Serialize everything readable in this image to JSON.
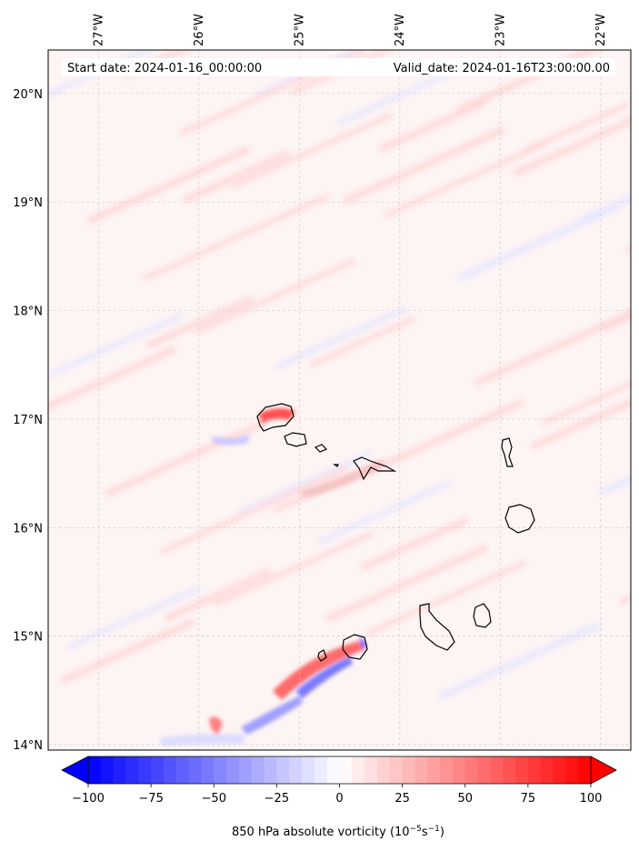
{
  "header": {
    "start_date": "Start date: 2024-01-16_00:00:00",
    "valid_date": "Valid_date: 2024-01-16T23:00:00.00"
  },
  "chart_data": {
    "type": "heatmap",
    "title": "",
    "projection": "map",
    "lon_ticks": [
      "27°W",
      "26°W",
      "25°W",
      "24°W",
      "23°W",
      "22°W"
    ],
    "lat_ticks": [
      "20°N",
      "19°N",
      "18°N",
      "17°N",
      "16°N",
      "15°N",
      "14°N"
    ],
    "lon_range": [
      -27.5,
      -21.7
    ],
    "lat_range": [
      13.95,
      20.4
    ],
    "grid": true,
    "colorbar": {
      "label": "850 hPa absolute vorticity (10",
      "label_exp": "−5",
      "label_unit": "s",
      "label_unit_exp": "−1",
      "label_close": ")",
      "ticks": [
        "−100",
        "−75",
        "−50",
        "−25",
        "0",
        "25",
        "50",
        "75",
        "100"
      ],
      "range": [
        -100,
        100
      ],
      "extend": "both",
      "cmap": "bwr"
    },
    "islands": [
      "Santo Antão",
      "São Vicente",
      "Santa Luzia",
      "São Nicolau",
      "Sal",
      "Boa Vista",
      "Maio",
      "Santiago",
      "Fogo",
      "Brava"
    ]
  },
  "colors": {
    "pos_max": "#ff0000",
    "neg_max": "#0000ff",
    "neutral": "#ffffff"
  }
}
